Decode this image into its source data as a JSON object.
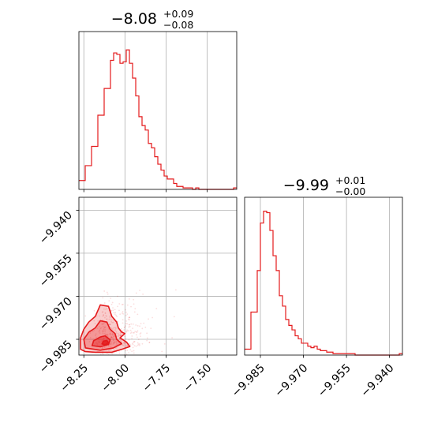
{
  "chart_data": {
    "type": "corner",
    "color": "#e41a1c",
    "grid": true,
    "parameters": [
      {
        "title_median": "−8.08",
        "title_plus": "+0.09",
        "title_minus": "−0.08"
      },
      {
        "title_median": "−9.99",
        "title_plus": "+0.01",
        "title_minus": "−0.00"
      }
    ],
    "param1_axis": {
      "range": [
        -8.28,
        -7.32
      ],
      "ticks": [
        -8.25,
        -8.0,
        -7.75,
        -7.5
      ],
      "tick_labels": [
        "−8.25",
        "−8.00",
        "−7.75",
        "−7.50"
      ]
    },
    "param2_axis": {
      "range": [
        -9.9905,
        -9.9355
      ],
      "ticks": [
        -9.985,
        -9.97,
        -9.955,
        -9.94
      ],
      "tick_labels": [
        "−9.985",
        "−9.970",
        "−9.955",
        "−9.940"
      ]
    },
    "hist1": {
      "bin_edges_start": -8.28,
      "bin_width": 0.0192,
      "counts": [
        0.06,
        0.06,
        0.16,
        0.16,
        0.29,
        0.29,
        0.5,
        0.5,
        0.68,
        0.68,
        0.87,
        0.92,
        0.91,
        0.85,
        0.86,
        0.94,
        0.85,
        0.75,
        0.63,
        0.49,
        0.43,
        0.4,
        0.31,
        0.28,
        0.22,
        0.17,
        0.13,
        0.09,
        0.07,
        0.07,
        0.04,
        0.02,
        0.02,
        0.01,
        0.01,
        0.01,
        0,
        0.01,
        0,
        0,
        0,
        0,
        0,
        0,
        0,
        0,
        0,
        0,
        0,
        0.01
      ]
    },
    "hist2": {
      "bin_edges_start": -9.9905,
      "bin_width": 0.0011,
      "counts": [
        0.04,
        0.04,
        0.29,
        0.29,
        0.57,
        0.89,
        0.97,
        0.96,
        0.84,
        0.67,
        0.57,
        0.4,
        0.33,
        0.24,
        0.2,
        0.17,
        0.13,
        0.11,
        0.08,
        0.08,
        0.06,
        0.05,
        0.06,
        0.04,
        0.03,
        0.03,
        0.02,
        0.02,
        0.01,
        0.01,
        0.01,
        0.01,
        0.01,
        0.01,
        0.01,
        0,
        0,
        0,
        0,
        0,
        0,
        0,
        0,
        0,
        0,
        0,
        0,
        0,
        0,
        0.01
      ]
    }
  }
}
